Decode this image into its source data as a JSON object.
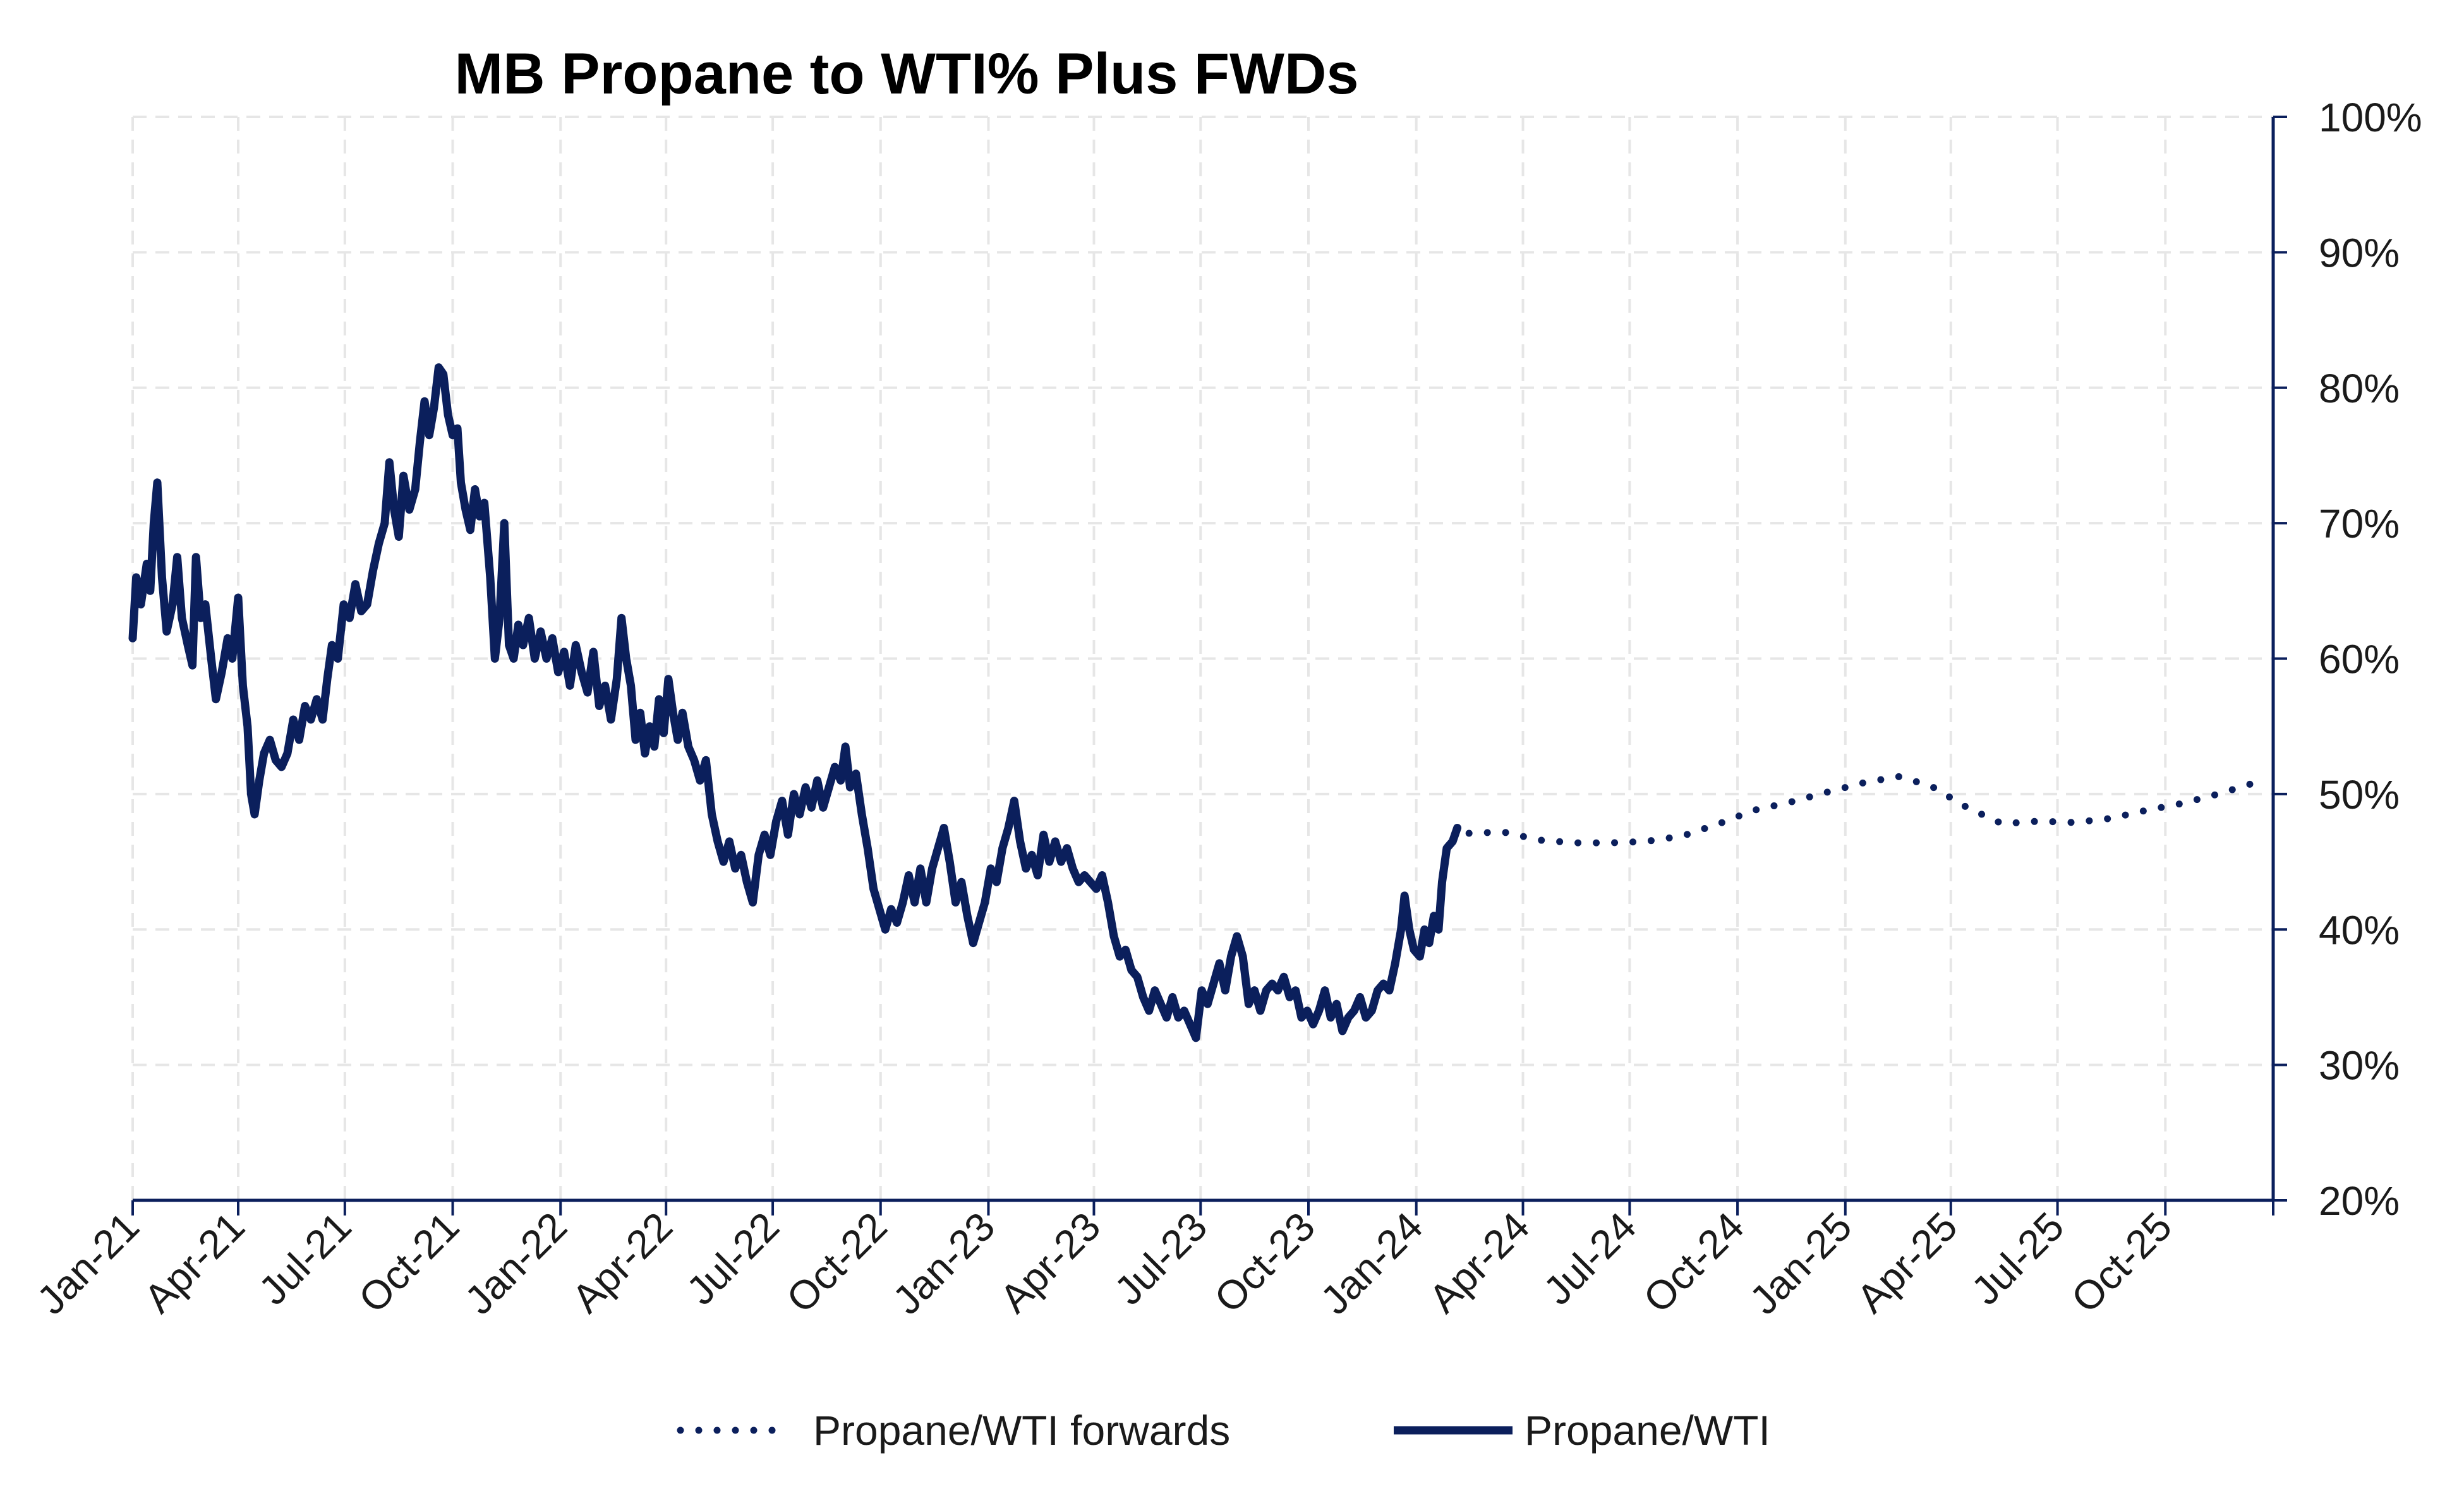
{
  "chart_data": {
    "type": "line",
    "title": "MB Propane to WTI% Plus FWDs",
    "xlabel": "",
    "ylabel": "",
    "ylim": [
      20,
      100
    ],
    "y_ticks": [
      "100%",
      "90%",
      "80%",
      "70%",
      "60%",
      "50%",
      "40%",
      "30%",
      "20%"
    ],
    "y_axis_position": "right",
    "x_range": [
      "2021-01-01",
      "2026-01-01"
    ],
    "x_ticks": [
      "Jan-21",
      "Apr-21",
      "Jul-21",
      "Oct-21",
      "Jan-22",
      "Apr-22",
      "Jul-22",
      "Oct-22",
      "Jan-23",
      "Apr-23",
      "Jul-23",
      "Oct-23",
      "Jan-24",
      "Apr-24",
      "Jul-24",
      "Oct-24",
      "Jan-25",
      "Apr-25",
      "Jul-25",
      "Oct-25"
    ],
    "grid": true,
    "legend_position": "bottom",
    "series": [
      {
        "name": "Propane/WTI",
        "style": "solid",
        "color": "#0b1f5c",
        "points": [
          [
            "2021-01-01",
            61.5
          ],
          [
            "2021-01-04",
            66
          ],
          [
            "2021-01-08",
            64
          ],
          [
            "2021-01-13",
            67
          ],
          [
            "2021-01-16",
            65
          ],
          [
            "2021-01-19",
            70
          ],
          [
            "2021-01-22",
            73
          ],
          [
            "2021-01-26",
            66
          ],
          [
            "2021-01-30",
            62
          ],
          [
            "2021-02-04",
            64
          ],
          [
            "2021-02-08",
            67.5
          ],
          [
            "2021-02-12",
            63
          ],
          [
            "2021-02-17",
            61
          ],
          [
            "2021-02-21",
            59.5
          ],
          [
            "2021-02-24",
            67.5
          ],
          [
            "2021-02-28",
            63
          ],
          [
            "2021-03-04",
            64
          ],
          [
            "2021-03-09",
            60
          ],
          [
            "2021-03-13",
            57
          ],
          [
            "2021-03-18",
            59
          ],
          [
            "2021-03-23",
            61.5
          ],
          [
            "2021-03-27",
            60
          ],
          [
            "2021-04-01",
            64.5
          ],
          [
            "2021-04-05",
            58
          ],
          [
            "2021-04-09",
            55
          ],
          [
            "2021-04-12",
            50
          ],
          [
            "2021-04-15",
            48.5
          ],
          [
            "2021-04-19",
            51
          ],
          [
            "2021-04-23",
            53
          ],
          [
            "2021-04-28",
            54
          ],
          [
            "2021-05-03",
            52.5
          ],
          [
            "2021-05-08",
            52
          ],
          [
            "2021-05-13",
            53
          ],
          [
            "2021-05-18",
            55.5
          ],
          [
            "2021-05-23",
            54
          ],
          [
            "2021-05-28",
            56.5
          ],
          [
            "2021-06-02",
            55.5
          ],
          [
            "2021-06-07",
            57
          ],
          [
            "2021-06-12",
            55.5
          ],
          [
            "2021-06-16",
            58.5
          ],
          [
            "2021-06-20",
            61
          ],
          [
            "2021-06-25",
            60
          ],
          [
            "2021-06-30",
            64
          ],
          [
            "2021-07-05",
            63
          ],
          [
            "2021-07-10",
            65.5
          ],
          [
            "2021-07-15",
            63.5
          ],
          [
            "2021-07-20",
            64
          ],
          [
            "2021-07-25",
            66.5
          ],
          [
            "2021-07-30",
            68.5
          ],
          [
            "2021-08-04",
            70
          ],
          [
            "2021-08-08",
            74.5
          ],
          [
            "2021-08-12",
            71
          ],
          [
            "2021-08-16",
            69
          ],
          [
            "2021-08-20",
            73.5
          ],
          [
            "2021-08-25",
            71
          ],
          [
            "2021-08-30",
            72.5
          ],
          [
            "2021-09-03",
            76
          ],
          [
            "2021-09-07",
            79
          ],
          [
            "2021-09-11",
            76.5
          ],
          [
            "2021-09-15",
            78.5
          ],
          [
            "2021-09-19",
            81.5
          ],
          [
            "2021-09-23",
            81
          ],
          [
            "2021-09-27",
            78
          ],
          [
            "2021-10-01",
            76.5
          ],
          [
            "2021-10-05",
            77
          ],
          [
            "2021-10-08",
            73
          ],
          [
            "2021-10-12",
            71
          ],
          [
            "2021-10-16",
            69.5
          ],
          [
            "2021-10-20",
            72.5
          ],
          [
            "2021-10-24",
            70.5
          ],
          [
            "2021-10-28",
            71.5
          ],
          [
            "2021-11-02",
            66
          ],
          [
            "2021-11-06",
            60
          ],
          [
            "2021-11-10",
            63
          ],
          [
            "2021-11-14",
            70
          ],
          [
            "2021-11-18",
            61
          ],
          [
            "2021-11-22",
            60
          ],
          [
            "2021-11-26",
            62.5
          ],
          [
            "2021-11-30",
            61
          ],
          [
            "2021-12-05",
            63
          ],
          [
            "2021-12-10",
            60
          ],
          [
            "2021-12-15",
            62
          ],
          [
            "2021-12-20",
            60
          ],
          [
            "2021-12-25",
            61.5
          ],
          [
            "2021-12-30",
            59
          ],
          [
            "2022-01-04",
            60.5
          ],
          [
            "2022-01-09",
            58
          ],
          [
            "2022-01-14",
            61
          ],
          [
            "2022-01-19",
            59
          ],
          [
            "2022-01-24",
            57.5
          ],
          [
            "2022-01-29",
            60.5
          ],
          [
            "2022-02-03",
            56.5
          ],
          [
            "2022-02-08",
            58
          ],
          [
            "2022-02-13",
            55.5
          ],
          [
            "2022-02-18",
            58.5
          ],
          [
            "2022-02-22",
            63
          ],
          [
            "2022-02-26",
            60
          ],
          [
            "2022-03-02",
            58
          ],
          [
            "2022-03-06",
            54
          ],
          [
            "2022-03-10",
            56
          ],
          [
            "2022-03-14",
            53
          ],
          [
            "2022-03-18",
            55
          ],
          [
            "2022-03-22",
            53.5
          ],
          [
            "2022-03-26",
            57
          ],
          [
            "2022-03-30",
            54.5
          ],
          [
            "2022-04-03",
            58.5
          ],
          [
            "2022-04-07",
            56
          ],
          [
            "2022-04-11",
            54
          ],
          [
            "2022-04-15",
            56
          ],
          [
            "2022-04-20",
            53.5
          ],
          [
            "2022-04-25",
            52.5
          ],
          [
            "2022-04-30",
            51
          ],
          [
            "2022-05-05",
            52.5
          ],
          [
            "2022-05-10",
            48.5
          ],
          [
            "2022-05-15",
            46.5
          ],
          [
            "2022-05-20",
            45
          ],
          [
            "2022-05-25",
            46.5
          ],
          [
            "2022-05-30",
            44.5
          ],
          [
            "2022-06-04",
            45.5
          ],
          [
            "2022-06-09",
            43.5
          ],
          [
            "2022-06-14",
            42
          ],
          [
            "2022-06-19",
            45.5
          ],
          [
            "2022-06-24",
            47
          ],
          [
            "2022-06-29",
            45.5
          ],
          [
            "2022-07-04",
            48
          ],
          [
            "2022-07-09",
            49.5
          ],
          [
            "2022-07-14",
            47
          ],
          [
            "2022-07-19",
            50
          ],
          [
            "2022-07-24",
            48.5
          ],
          [
            "2022-07-29",
            50.5
          ],
          [
            "2022-08-03",
            49
          ],
          [
            "2022-08-08",
            51
          ],
          [
            "2022-08-13",
            49
          ],
          [
            "2022-08-18",
            50.5
          ],
          [
            "2022-08-23",
            52
          ],
          [
            "2022-08-28",
            51
          ],
          [
            "2022-09-01",
            53.5
          ],
          [
            "2022-09-05",
            50.5
          ],
          [
            "2022-09-10",
            51.5
          ],
          [
            "2022-09-15",
            48.5
          ],
          [
            "2022-09-20",
            46
          ],
          [
            "2022-09-25",
            43
          ],
          [
            "2022-09-30",
            41.5
          ],
          [
            "2022-10-05",
            40
          ],
          [
            "2022-10-10",
            41.5
          ],
          [
            "2022-10-15",
            40.5
          ],
          [
            "2022-10-20",
            42
          ],
          [
            "2022-10-25",
            44
          ],
          [
            "2022-10-30",
            42
          ],
          [
            "2022-11-04",
            44.5
          ],
          [
            "2022-11-09",
            42
          ],
          [
            "2022-11-14",
            44.5
          ],
          [
            "2022-11-19",
            46
          ],
          [
            "2022-11-24",
            47.5
          ],
          [
            "2022-11-29",
            45
          ],
          [
            "2022-12-04",
            42
          ],
          [
            "2022-12-09",
            43.5
          ],
          [
            "2022-12-14",
            41
          ],
          [
            "2022-12-19",
            39
          ],
          [
            "2022-12-24",
            40.5
          ],
          [
            "2022-12-29",
            42
          ],
          [
            "2023-01-03",
            44.5
          ],
          [
            "2023-01-08",
            43.5
          ],
          [
            "2023-01-13",
            46
          ],
          [
            "2023-01-18",
            47.5
          ],
          [
            "2023-01-23",
            49.5
          ],
          [
            "2023-01-28",
            46.5
          ],
          [
            "2023-02-02",
            44.5
          ],
          [
            "2023-02-07",
            45.5
          ],
          [
            "2023-02-12",
            44
          ],
          [
            "2023-02-17",
            47
          ],
          [
            "2023-02-22",
            45
          ],
          [
            "2023-02-27",
            46.5
          ],
          [
            "2023-03-04",
            45
          ],
          [
            "2023-03-09",
            46
          ],
          [
            "2023-03-14",
            44.5
          ],
          [
            "2023-03-19",
            43.5
          ],
          [
            "2023-03-24",
            44
          ],
          [
            "2023-03-29",
            43.5
          ],
          [
            "2023-04-03",
            43
          ],
          [
            "2023-04-08",
            44
          ],
          [
            "2023-04-13",
            42
          ],
          [
            "2023-04-18",
            39.5
          ],
          [
            "2023-04-23",
            38
          ],
          [
            "2023-04-28",
            38.5
          ],
          [
            "2023-05-03",
            37
          ],
          [
            "2023-05-08",
            36.5
          ],
          [
            "2023-05-13",
            35
          ],
          [
            "2023-05-18",
            34
          ],
          [
            "2023-05-23",
            35.5
          ],
          [
            "2023-05-28",
            34.5
          ],
          [
            "2023-06-02",
            33.5
          ],
          [
            "2023-06-07",
            35
          ],
          [
            "2023-06-12",
            33.5
          ],
          [
            "2023-06-17",
            34
          ],
          [
            "2023-06-22",
            33
          ],
          [
            "2023-06-27",
            32
          ],
          [
            "2023-07-02",
            35.5
          ],
          [
            "2023-07-07",
            34.5
          ],
          [
            "2023-07-12",
            36
          ],
          [
            "2023-07-17",
            37.5
          ],
          [
            "2023-07-22",
            35.5
          ],
          [
            "2023-07-27",
            38
          ],
          [
            "2023-08-01",
            39.5
          ],
          [
            "2023-08-06",
            38
          ],
          [
            "2023-08-11",
            34.5
          ],
          [
            "2023-08-16",
            35.5
          ],
          [
            "2023-08-21",
            34
          ],
          [
            "2023-08-26",
            35.5
          ],
          [
            "2023-08-31",
            36
          ],
          [
            "2023-09-05",
            35.5
          ],
          [
            "2023-09-10",
            36.5
          ],
          [
            "2023-09-15",
            35
          ],
          [
            "2023-09-20",
            35.5
          ],
          [
            "2023-09-25",
            33.5
          ],
          [
            "2023-09-30",
            34
          ],
          [
            "2023-10-05",
            33
          ],
          [
            "2023-10-10",
            34
          ],
          [
            "2023-10-15",
            35.5
          ],
          [
            "2023-10-20",
            33.5
          ],
          [
            "2023-10-25",
            34.5
          ],
          [
            "2023-10-30",
            32.5
          ],
          [
            "2023-11-04",
            33.5
          ],
          [
            "2023-11-09",
            34
          ],
          [
            "2023-11-14",
            35
          ],
          [
            "2023-11-19",
            33.5
          ],
          [
            "2023-11-24",
            34
          ],
          [
            "2023-11-29",
            35.5
          ],
          [
            "2023-12-04",
            36
          ],
          [
            "2023-12-09",
            35.5
          ],
          [
            "2023-12-14",
            37.5
          ],
          [
            "2023-12-19",
            40
          ],
          [
            "2023-12-22",
            42.5
          ],
          [
            "2023-12-26",
            40
          ],
          [
            "2023-12-30",
            38.5
          ],
          [
            "2024-01-04",
            38
          ],
          [
            "2024-01-08",
            40
          ],
          [
            "2024-01-12",
            39
          ],
          [
            "2024-01-16",
            41
          ],
          [
            "2024-01-20",
            40
          ],
          [
            "2024-01-23",
            43.5
          ],
          [
            "2024-01-27",
            46
          ],
          [
            "2024-02-01",
            46.5
          ],
          [
            "2024-02-05",
            47.5
          ]
        ]
      },
      {
        "name": "Propane/WTI forwards",
        "style": "dotted",
        "color": "#0b1f5c",
        "points": [
          [
            "2024-02-15",
            47.1
          ],
          [
            "2024-03-15",
            47.2
          ],
          [
            "2024-04-15",
            46.6
          ],
          [
            "2024-05-15",
            46.4
          ],
          [
            "2024-06-15",
            46.4
          ],
          [
            "2024-07-15",
            46.5
          ],
          [
            "2024-08-15",
            46.9
          ],
          [
            "2024-09-15",
            47.8
          ],
          [
            "2024-10-15",
            48.8
          ],
          [
            "2024-11-15",
            49.4
          ],
          [
            "2024-12-15",
            50.1
          ],
          [
            "2025-01-15",
            50.8
          ],
          [
            "2025-02-15",
            51.3
          ],
          [
            "2025-03-15",
            50.6
          ],
          [
            "2025-04-15",
            49.0
          ],
          [
            "2025-05-15",
            47.8
          ],
          [
            "2025-06-15",
            48.0
          ],
          [
            "2025-07-15",
            47.9
          ],
          [
            "2025-08-15",
            48.2
          ],
          [
            "2025-09-15",
            48.8
          ],
          [
            "2025-10-15",
            49.3
          ],
          [
            "2025-11-15",
            50.0
          ],
          [
            "2025-12-15",
            50.8
          ]
        ]
      }
    ]
  }
}
